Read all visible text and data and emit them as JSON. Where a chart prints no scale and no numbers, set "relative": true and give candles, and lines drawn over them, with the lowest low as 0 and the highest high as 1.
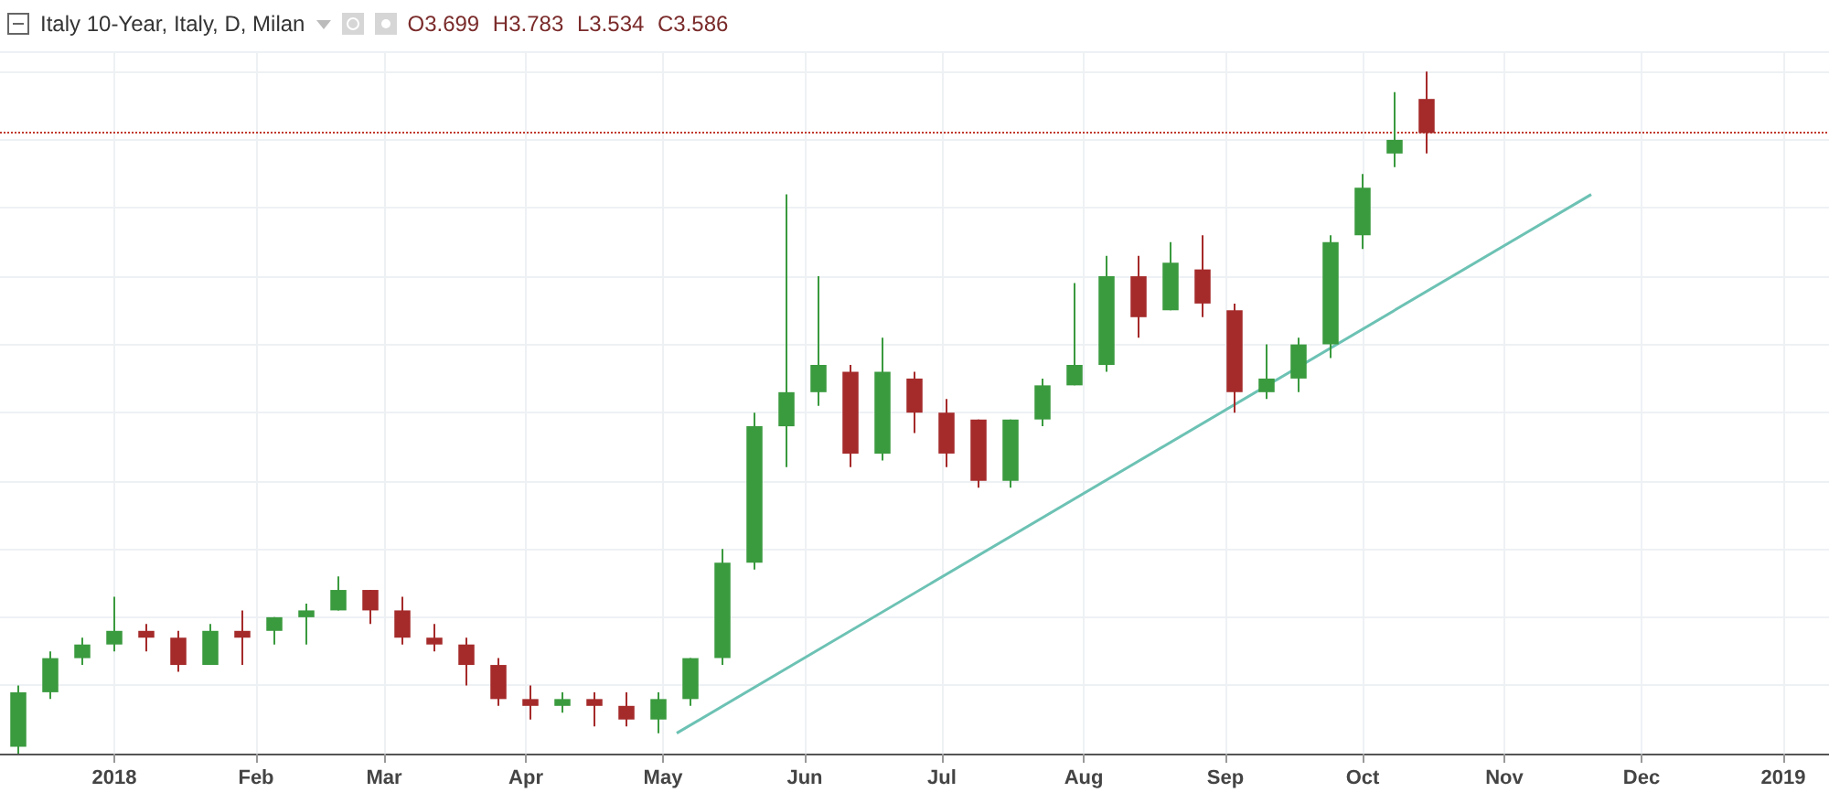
{
  "chart_data": {
    "type": "candlestick",
    "title": "Italy 10-Year, Italy, D, Milan",
    "subtitle": "O3.699 H3.783 L3.534 C3.586",
    "relative": true,
    "grid": true,
    "tick_labels": "x",
    "marker": "none",
    "xlim": [
      "2017-12-07",
      "2019-01-11"
    ],
    "xticks": [
      {
        "value": "2018-01-01",
        "label": "2018"
      },
      {
        "value": "2018-02-01",
        "label": "Feb"
      },
      {
        "value": "2018-03-01",
        "label": "Mar"
      },
      {
        "value": "2018-04-01",
        "label": "Apr"
      },
      {
        "value": "2018-05-01",
        "label": "May"
      },
      {
        "value": "2018-06-01",
        "label": "Jun"
      },
      {
        "value": "2018-07-01",
        "label": "Jul"
      },
      {
        "value": "2018-08-01",
        "label": "Aug"
      },
      {
        "value": "2018-09-01",
        "label": "Sep"
      },
      {
        "value": "2018-10-01",
        "label": "Oct"
      },
      {
        "value": "2018-11-01",
        "label": "Nov"
      },
      {
        "value": "2018-12-01",
        "label": "Dec"
      },
      {
        "value": "2019-01-01",
        "label": "2019"
      }
    ],
    "ref_lines": [
      {
        "axis": "y",
        "value": 0.91,
        "color": "#c0392b",
        "line_style": "dotted"
      }
    ],
    "series": [
      {
        "type": "candlestick",
        "x": [
          "2017-12-11",
          "2017-12-18",
          "2017-12-25",
          "2018-01-01",
          "2018-01-08",
          "2018-01-15",
          "2018-01-22",
          "2018-01-29",
          "2018-02-05",
          "2018-02-12",
          "2018-02-19",
          "2018-02-26",
          "2018-03-05",
          "2018-03-12",
          "2018-03-19",
          "2018-03-26",
          "2018-04-02",
          "2018-04-09",
          "2018-04-16",
          "2018-04-23",
          "2018-04-30",
          "2018-05-07",
          "2018-05-14",
          "2018-05-21",
          "2018-05-28",
          "2018-06-04",
          "2018-06-11",
          "2018-06-18",
          "2018-06-25",
          "2018-07-02",
          "2018-07-09",
          "2018-07-16",
          "2018-07-23",
          "2018-07-30",
          "2018-08-06",
          "2018-08-13",
          "2018-08-20",
          "2018-08-27",
          "2018-09-03",
          "2018-09-10",
          "2018-09-17",
          "2018-09-24",
          "2018-10-01",
          "2018-10-08",
          "2018-10-15"
        ],
        "ohlc": [
          [
            0.01,
            0.1,
            0,
            0.09
          ],
          [
            0.09,
            0.15,
            0.08,
            0.14
          ],
          [
            0.14,
            0.17,
            0.13,
            0.16
          ],
          [
            0.16,
            0.23,
            0.15,
            0.18
          ],
          [
            0.18,
            0.19,
            0.15,
            0.17
          ],
          [
            0.17,
            0.18,
            0.12,
            0.13
          ],
          [
            0.13,
            0.19,
            0.13,
            0.18
          ],
          [
            0.18,
            0.21,
            0.13,
            0.17
          ],
          [
            0.18,
            0.2,
            0.16,
            0.2
          ],
          [
            0.2,
            0.22,
            0.16,
            0.21
          ],
          [
            0.21,
            0.26,
            0.21,
            0.24
          ],
          [
            0.24,
            0.24,
            0.19,
            0.21
          ],
          [
            0.21,
            0.23,
            0.16,
            0.17
          ],
          [
            0.17,
            0.19,
            0.15,
            0.16
          ],
          [
            0.16,
            0.17,
            0.1,
            0.13
          ],
          [
            0.13,
            0.14,
            0.07,
            0.08
          ],
          [
            0.08,
            0.1,
            0.05,
            0.07
          ],
          [
            0.07,
            0.09,
            0.06,
            0.08
          ],
          [
            0.08,
            0.09,
            0.04,
            0.07
          ],
          [
            0.07,
            0.09,
            0.04,
            0.05
          ],
          [
            0.05,
            0.09,
            0.03,
            0.08
          ],
          [
            0.08,
            0.14,
            0.07,
            0.14
          ],
          [
            0.14,
            0.3,
            0.13,
            0.28
          ],
          [
            0.28,
            0.5,
            0.27,
            0.48
          ],
          [
            0.48,
            0.82,
            0.42,
            0.53
          ],
          [
            0.53,
            0.7,
            0.51,
            0.57
          ],
          [
            0.56,
            0.57,
            0.42,
            0.44
          ],
          [
            0.44,
            0.61,
            0.43,
            0.56
          ],
          [
            0.55,
            0.56,
            0.47,
            0.5
          ],
          [
            0.5,
            0.52,
            0.42,
            0.44
          ],
          [
            0.49,
            0.49,
            0.39,
            0.4
          ],
          [
            0.4,
            0.49,
            0.39,
            0.49
          ],
          [
            0.49,
            0.55,
            0.48,
            0.54
          ],
          [
            0.54,
            0.69,
            0.54,
            0.57
          ],
          [
            0.57,
            0.73,
            0.56,
            0.7
          ],
          [
            0.7,
            0.73,
            0.61,
            0.64
          ],
          [
            0.65,
            0.75,
            0.65,
            0.72
          ],
          [
            0.71,
            0.76,
            0.64,
            0.66
          ],
          [
            0.65,
            0.66,
            0.5,
            0.53
          ],
          [
            0.53,
            0.6,
            0.52,
            0.55
          ],
          [
            0.55,
            0.61,
            0.53,
            0.6
          ],
          [
            0.6,
            0.76,
            0.58,
            0.75
          ],
          [
            0.76,
            0.85,
            0.74,
            0.83
          ],
          [
            0.88,
            0.97,
            0.86,
            0.9
          ],
          [
            0.96,
            1,
            0.88,
            0.91
          ]
        ],
        "colors": [
          "#3a9a3e",
          "#3a9a3e",
          "#3a9a3e",
          "#3a9a3e",
          "#a52a2a",
          "#a52a2a",
          "#3a9a3e",
          "#a52a2a",
          "#3a9a3e",
          "#3a9a3e",
          "#3a9a3e",
          "#a52a2a",
          "#a52a2a",
          "#a52a2a",
          "#a52a2a",
          "#a52a2a",
          "#a52a2a",
          "#3a9a3e",
          "#a52a2a",
          "#a52a2a",
          "#3a9a3e",
          "#3a9a3e",
          "#3a9a3e",
          "#3a9a3e",
          "#3a9a3e",
          "#3a9a3e",
          "#a52a2a",
          "#3a9a3e",
          "#a52a2a",
          "#a52a2a",
          "#a52a2a",
          "#3a9a3e",
          "#3a9a3e",
          "#3a9a3e",
          "#3a9a3e",
          "#a52a2a",
          "#3a9a3e",
          "#a52a2a",
          "#a52a2a",
          "#3a9a3e",
          "#3a9a3e",
          "#3a9a3e",
          "#3a9a3e",
          "#3a9a3e",
          "#a52a2a"
        ]
      },
      {
        "type": "line",
        "x": [
          "2018-05-04",
          "2018-11-20"
        ],
        "values": [
          0.03,
          0.82
        ],
        "color": "#6cc2b4"
      }
    ]
  }
}
